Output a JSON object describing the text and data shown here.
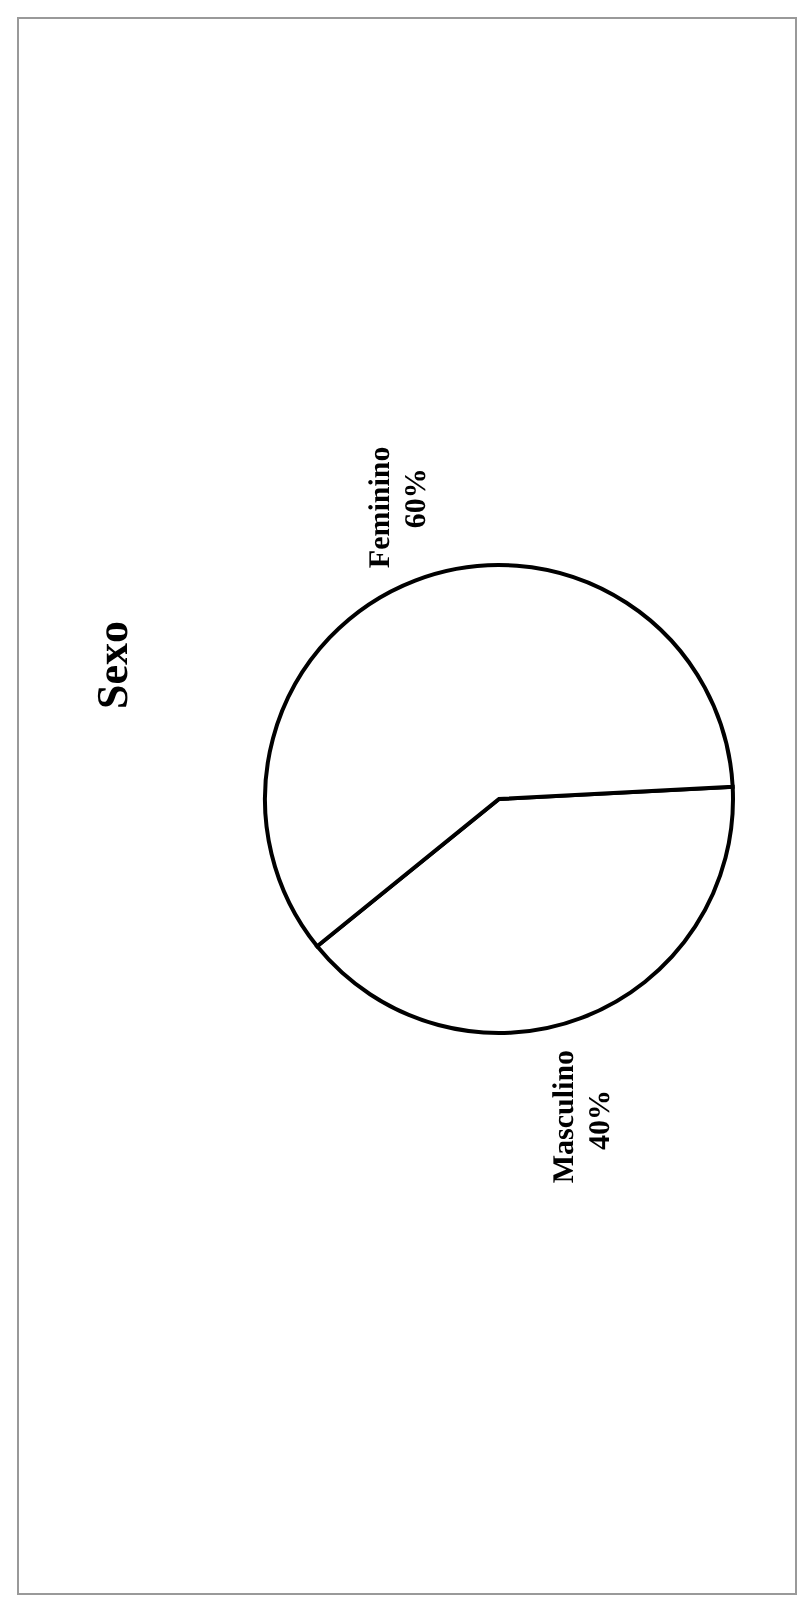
{
  "chart_data": {
    "type": "pie",
    "title": "Sexo",
    "categories": [
      "Masculino",
      "Feminino"
    ],
    "values": [
      40,
      60
    ],
    "value_labels": [
      "40%",
      "60%"
    ],
    "colors": [
      "#ffffff",
      "#ffffff"
    ]
  }
}
